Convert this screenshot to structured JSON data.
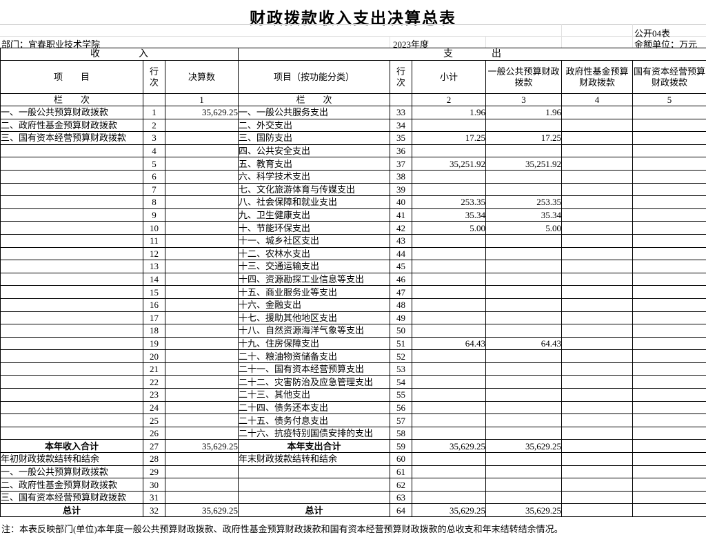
{
  "title": "财政拨款收入支出决算总表",
  "meta": {
    "table_code": "公开04表",
    "department": "部门：宜春职业技术学院",
    "year": "2023年度",
    "unit": "金额单位：万元"
  },
  "table": {
    "income_section": "收　　　　入",
    "expenditure_section": "支　　　　出",
    "headers": {
      "item": "项　　目",
      "row_no": "行次",
      "final_amount": "决算数",
      "item_by_function": "项目（按功能分类）",
      "subtotal": "小计",
      "general_public_budget": "一般公共预算财政拨款",
      "gov_fund_budget": "政府性基金预算财政拨款",
      "state_capital_budget": "国有资本经营预算财政拨款"
    },
    "lanci": {
      "label": "栏　　次",
      "cols": [
        "1",
        "2",
        "3",
        "4",
        "5"
      ]
    },
    "bold_center_rows": [
      26,
      31
    ],
    "rows": [
      [
        "一、一般公共预算财政拨款",
        "1",
        "35,629.25",
        "一、一般公共服务支出",
        "33",
        "1.96",
        "1.96",
        "",
        ""
      ],
      [
        "二、政府性基金预算财政拨款",
        "2",
        "",
        "二、外交支出",
        "34",
        "",
        "",
        "",
        ""
      ],
      [
        "三、国有资本经营预算财政拨款",
        "3",
        "",
        "三、国防支出",
        "35",
        "17.25",
        "17.25",
        "",
        ""
      ],
      [
        "",
        "4",
        "",
        "四、公共安全支出",
        "36",
        "",
        "",
        "",
        ""
      ],
      [
        "",
        "5",
        "",
        "五、教育支出",
        "37",
        "35,251.92",
        "35,251.92",
        "",
        ""
      ],
      [
        "",
        "6",
        "",
        "六、科学技术支出",
        "38",
        "",
        "",
        "",
        ""
      ],
      [
        "",
        "7",
        "",
        "七、文化旅游体育与传媒支出",
        "39",
        "",
        "",
        "",
        ""
      ],
      [
        "",
        "8",
        "",
        "八、社会保障和就业支出",
        "40",
        "253.35",
        "253.35",
        "",
        ""
      ],
      [
        "",
        "9",
        "",
        "九、卫生健康支出",
        "41",
        "35.34",
        "35.34",
        "",
        ""
      ],
      [
        "",
        "10",
        "",
        "十、节能环保支出",
        "42",
        "5.00",
        "5.00",
        "",
        ""
      ],
      [
        "",
        "11",
        "",
        "十一、城乡社区支出",
        "43",
        "",
        "",
        "",
        ""
      ],
      [
        "",
        "12",
        "",
        "十二、农林水支出",
        "44",
        "",
        "",
        "",
        ""
      ],
      [
        "",
        "13",
        "",
        "十三、交通运输支出",
        "45",
        "",
        "",
        "",
        ""
      ],
      [
        "",
        "14",
        "",
        "十四、资源勘探工业信息等支出",
        "46",
        "",
        "",
        "",
        ""
      ],
      [
        "",
        "15",
        "",
        "十五、商业服务业等支出",
        "47",
        "",
        "",
        "",
        ""
      ],
      [
        "",
        "16",
        "",
        "十六、金融支出",
        "48",
        "",
        "",
        "",
        ""
      ],
      [
        "",
        "17",
        "",
        "十七、援助其他地区支出",
        "49",
        "",
        "",
        "",
        ""
      ],
      [
        "",
        "18",
        "",
        "十八、自然资源海洋气象等支出",
        "50",
        "",
        "",
        "",
        ""
      ],
      [
        "",
        "19",
        "",
        "十九、住房保障支出",
        "51",
        "64.43",
        "64.43",
        "",
        ""
      ],
      [
        "",
        "20",
        "",
        "二十、粮油物资储备支出",
        "52",
        "",
        "",
        "",
        ""
      ],
      [
        "",
        "21",
        "",
        "二十一、国有资本经营预算支出",
        "53",
        "",
        "",
        "",
        ""
      ],
      [
        "",
        "22",
        "",
        "二十二、灾害防治及应急管理支出",
        "54",
        "",
        "",
        "",
        ""
      ],
      [
        "",
        "23",
        "",
        "二十三、其他支出",
        "55",
        "",
        "",
        "",
        ""
      ],
      [
        "",
        "24",
        "",
        "二十四、债务还本支出",
        "56",
        "",
        "",
        "",
        ""
      ],
      [
        "",
        "25",
        "",
        "二十五、债务付息支出",
        "57",
        "",
        "",
        "",
        ""
      ],
      [
        "",
        "26",
        "",
        "二十六、抗疫特别国债安排的支出",
        "58",
        "",
        "",
        "",
        ""
      ],
      [
        "本年收入合计",
        "27",
        "35,629.25",
        "本年支出合计",
        "59",
        "35,629.25",
        "35,629.25",
        "",
        ""
      ],
      [
        "年初财政拨款结转和结余",
        "28",
        "",
        "年末财政拨款结转和结余",
        "60",
        "",
        "",
        "",
        ""
      ],
      [
        "一、一般公共预算财政拨款",
        "29",
        "",
        "",
        "61",
        "",
        "",
        "",
        ""
      ],
      [
        "二、政府性基金预算财政拨款",
        "30",
        "",
        "",
        "62",
        "",
        "",
        "",
        ""
      ],
      [
        "三、国有资本经营预算财政拨款",
        "31",
        "",
        "",
        "63",
        "",
        "",
        "",
        ""
      ],
      [
        "总计",
        "32",
        "35,629.25",
        "总计",
        "64",
        "35,629.25",
        "35,629.25",
        "",
        ""
      ]
    ],
    "note": "注：本表反映部门(单位)本年度一般公共预算财政拨款、政府性基金预算财政拨款和国有资本经营预算财政拨款的总收支和年末结转结余情况。"
  }
}
